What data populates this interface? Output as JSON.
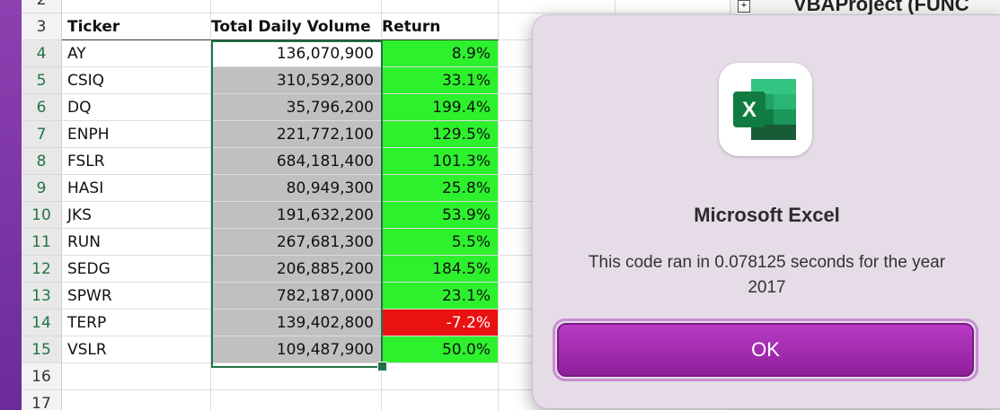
{
  "spreadsheet": {
    "row_numbers": [
      "2",
      "3",
      "4",
      "5",
      "6",
      "7",
      "8",
      "9",
      "10",
      "11",
      "12",
      "13",
      "14",
      "15",
      "16",
      "17"
    ],
    "headers": {
      "ticker": "Ticker",
      "volume": "Total Daily Volume",
      "return": "Return"
    },
    "rows": [
      {
        "ticker": "AY",
        "volume": "136,070,900",
        "return": "8.9%",
        "return_status": "positive"
      },
      {
        "ticker": "CSIQ",
        "volume": "310,592,800",
        "return": "33.1%",
        "return_status": "positive"
      },
      {
        "ticker": "DQ",
        "volume": "35,796,200",
        "return": "199.4%",
        "return_status": "positive"
      },
      {
        "ticker": "ENPH",
        "volume": "221,772,100",
        "return": "129.5%",
        "return_status": "positive"
      },
      {
        "ticker": "FSLR",
        "volume": "684,181,400",
        "return": "101.3%",
        "return_status": "positive"
      },
      {
        "ticker": "HASI",
        "volume": "80,949,300",
        "return": "25.8%",
        "return_status": "positive"
      },
      {
        "ticker": "JKS",
        "volume": "191,632,200",
        "return": "53.9%",
        "return_status": "positive"
      },
      {
        "ticker": "RUN",
        "volume": "267,681,300",
        "return": "5.5%",
        "return_status": "positive"
      },
      {
        "ticker": "SEDG",
        "volume": "206,885,200",
        "return": "184.5%",
        "return_status": "positive"
      },
      {
        "ticker": "SPWR",
        "volume": "782,187,000",
        "return": "23.1%",
        "return_status": "positive"
      },
      {
        "ticker": "TERP",
        "volume": "139,402,800",
        "return": "-7.2%",
        "return_status": "negative"
      },
      {
        "ticker": "VSLR",
        "volume": "109,487,900",
        "return": "50.0%",
        "return_status": "positive"
      }
    ],
    "colors": {
      "positive": "#2ef12e",
      "negative": "#ea1111",
      "selection": "#217346"
    }
  },
  "vba_panel": {
    "project_label": "VBAProject (FUNC"
  },
  "dialog": {
    "icon": "excel-app-icon",
    "title": "Microsoft Excel",
    "message": "This code ran in 0.078125 seconds for the year 2017",
    "ok_label": "OK",
    "accent": "#a52bb2"
  }
}
